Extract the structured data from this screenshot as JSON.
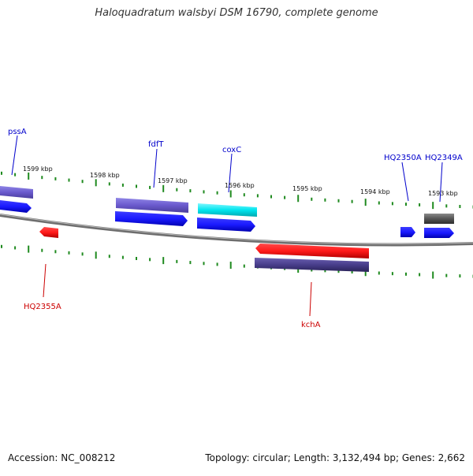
{
  "title": "Haloquadratum walsbyi DSM 16790, complete genome",
  "footer": {
    "accession": "Accession: NC_008212",
    "summary": "Topology: circular; Length: 3,132,494 bp; Genes: 2,662"
  },
  "colors": {
    "backbone": "#8a8a8a",
    "tick": "#1f8a1f",
    "forward_cds": "#1a1aff",
    "reverse_cds": "#ff1a1a",
    "cog_purple": "#6a5acd",
    "cog_dark": "#483d8b",
    "cog_cyan": "#00e5ee",
    "cog_gray": "#555555",
    "label_forward": "#0000cc",
    "label_reverse": "#cc0000"
  },
  "kbp_labels": [
    "1599 kbp",
    "1598 kbp",
    "1597 kbp",
    "1596 kbp",
    "1595 kbp",
    "1594 kbp",
    "1593 kbp"
  ],
  "gene_labels": {
    "forward": [
      "pssA",
      "fdfT",
      "coxC",
      "HQ2350A",
      "HQ2349A"
    ],
    "reverse": [
      "HQ2355A",
      "kchA"
    ]
  }
}
